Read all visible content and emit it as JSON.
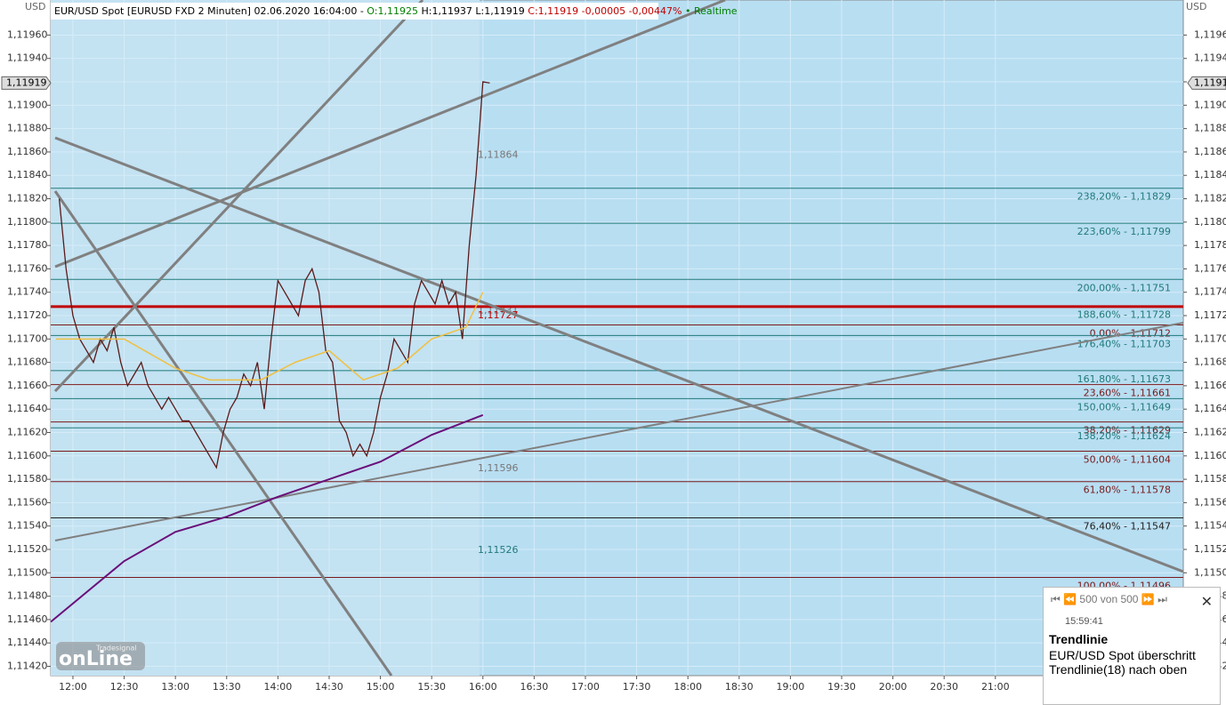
{
  "header": {
    "parts": [
      {
        "text": "EUR/USD Spot [EURUSD FXD 2 Minuten] 02.06.2020 16:04:00 -",
        "color": "#000000"
      },
      {
        "text": "O:1,11925",
        "color": "#008000"
      },
      {
        "text": "H:1,11937 L:1,11919",
        "color": "#000000"
      },
      {
        "text": "C:1,11919 -0,00005 -0,00447%",
        "color": "#c00000"
      },
      {
        "text": "• Realtime",
        "color": "#008000"
      }
    ],
    "currency_left": "USD",
    "currency_right": "USD"
  },
  "price_marker": {
    "label": "1,11919",
    "value": 1.11919
  },
  "logo": {
    "brand": "Tradesignal",
    "text": "onLine"
  },
  "popup": {
    "counter": "500 von 500",
    "time": "15:59:41",
    "title": "Trendlinie",
    "message": "EUR/USD Spot überschritt Trendlinie(18) nach oben"
  },
  "chart_data": {
    "type": "line",
    "xlim": [
      "11:47",
      "22:50"
    ],
    "ylim": [
      1.11412,
      1.1199
    ],
    "xticks": [
      "12:00",
      "12:30",
      "13:00",
      "13:30",
      "14:00",
      "14:30",
      "15:00",
      "15:30",
      "16:00",
      "16:30",
      "17:00",
      "17:30",
      "18:00",
      "18:30",
      "19:00",
      "19:30",
      "20:00",
      "20:30",
      "21:00"
    ],
    "yticks": [
      {
        "value": 1.1142,
        "label": "1,11420"
      },
      {
        "value": 1.1144,
        "label": "1,11440"
      },
      {
        "value": 1.1146,
        "label": "1,11460"
      },
      {
        "value": 1.1148,
        "label": "1,11480"
      },
      {
        "value": 1.115,
        "label": "1,11500"
      },
      {
        "value": 1.1152,
        "label": "1,11520"
      },
      {
        "value": 1.1154,
        "label": "1,11540"
      },
      {
        "value": 1.1156,
        "label": "1,11560"
      },
      {
        "value": 1.1158,
        "label": "1,11580"
      },
      {
        "value": 1.116,
        "label": "1,11600"
      },
      {
        "value": 1.1162,
        "label": "1,11620"
      },
      {
        "value": 1.1164,
        "label": "1,11640"
      },
      {
        "value": 1.1166,
        "label": "1,11660"
      },
      {
        "value": 1.1168,
        "label": "1,11680"
      },
      {
        "value": 1.117,
        "label": "1,11700"
      },
      {
        "value": 1.1172,
        "label": "1,11720"
      },
      {
        "value": 1.1174,
        "label": "1,11740"
      },
      {
        "value": 1.1176,
        "label": "1,11760"
      },
      {
        "value": 1.1178,
        "label": "1,11780"
      },
      {
        "value": 1.118,
        "label": "1,11800"
      },
      {
        "value": 1.1182,
        "label": "1,11820"
      },
      {
        "value": 1.1184,
        "label": "1,11840"
      },
      {
        "value": 1.1186,
        "label": "1,11860"
      },
      {
        "value": 1.1188,
        "label": "1,11880"
      },
      {
        "value": 1.119,
        "label": "1,11900"
      },
      {
        "value": 1.1192,
        "label": "1,11920"
      },
      {
        "value": 1.1194,
        "label": "1,11940"
      },
      {
        "value": 1.1196,
        "label": "1,11960"
      }
    ],
    "grid": true,
    "series": [
      {
        "color": "#5a1a1a",
        "width": 1.3,
        "x": [
          "11:52",
          "11:56",
          "12:00",
          "12:04",
          "12:08",
          "12:12",
          "12:16",
          "12:20",
          "12:24",
          "12:28",
          "12:32",
          "12:36",
          "12:40",
          "12:44",
          "12:48",
          "12:52",
          "12:56",
          "13:00",
          "13:04",
          "13:08",
          "13:12",
          "13:16",
          "13:20",
          "13:24",
          "13:28",
          "13:32",
          "13:36",
          "13:40",
          "13:44",
          "13:48",
          "13:52",
          "13:56",
          "14:00",
          "14:04",
          "14:08",
          "14:12",
          "14:16",
          "14:20",
          "14:24",
          "14:28",
          "14:32",
          "14:36",
          "14:40",
          "14:44",
          "14:48",
          "14:52",
          "14:56",
          "15:00",
          "15:04",
          "15:08",
          "15:12",
          "15:16",
          "15:20",
          "15:24",
          "15:28",
          "15:32",
          "15:36",
          "15:40",
          "15:44",
          "15:48",
          "15:52",
          "15:56",
          "16:00",
          "16:04"
        ],
        "values": [
          1.1182,
          1.1176,
          1.1172,
          1.117,
          1.1169,
          1.1168,
          1.117,
          1.1169,
          1.1171,
          1.1168,
          1.1166,
          1.1167,
          1.1168,
          1.1166,
          1.1165,
          1.1164,
          1.1165,
          1.1164,
          1.1163,
          1.1163,
          1.1162,
          1.1161,
          1.116,
          1.1159,
          1.1162,
          1.1164,
          1.1165,
          1.1167,
          1.1166,
          1.1168,
          1.1164,
          1.117,
          1.1175,
          1.1174,
          1.1173,
          1.1172,
          1.1175,
          1.1176,
          1.1174,
          1.1169,
          1.1168,
          1.1163,
          1.1162,
          1.116,
          1.1161,
          1.116,
          1.1162,
          1.1165,
          1.1167,
          1.117,
          1.1169,
          1.1168,
          1.1173,
          1.1175,
          1.1174,
          1.1173,
          1.1175,
          1.1173,
          1.1174,
          1.117,
          1.1178,
          1.1184,
          1.1192,
          1.11919
        ]
      },
      {
        "color": "#f0c040",
        "width": 1.5,
        "x": [
          "11:50",
          "12:30",
          "13:00",
          "13:20",
          "13:50",
          "14:10",
          "14:30",
          "14:50",
          "15:10",
          "15:30",
          "15:50",
          "16:00"
        ],
        "values": [
          1.117,
          1.117,
          1.11675,
          1.11665,
          1.11665,
          1.1168,
          1.1169,
          1.11665,
          1.11675,
          1.117,
          1.1171,
          1.1174
        ]
      },
      {
        "color": "#6a0f7a",
        "width": 2,
        "x": [
          "11:47",
          "12:30",
          "13:00",
          "13:30",
          "14:00",
          "14:30",
          "15:00",
          "15:30",
          "16:00"
        ],
        "values": [
          1.11458,
          1.1151,
          1.11535,
          1.11548,
          1.11565,
          1.1158,
          1.11595,
          1.11618,
          1.11635
        ]
      }
    ],
    "levels": [
      {
        "label": "238,20% - 1,11829",
        "value": 1.11829,
        "color": "#207a7a"
      },
      {
        "label": "223,60% - 1,11799",
        "value": 1.11799,
        "color": "#207a7a"
      },
      {
        "label": "200,00% - 1,11751",
        "value": 1.11751,
        "color": "#207a7a"
      },
      {
        "label": "188,60% - 1,11728",
        "value": 1.11728,
        "color": "#207a7a"
      },
      {
        "label": "0,00% - 1,11712",
        "value": 1.11712,
        "color": "#7a1a1a"
      },
      {
        "label": "176,40% - 1,11703",
        "value": 1.11703,
        "color": "#207a7a"
      },
      {
        "label": "161,80% - 1,11673",
        "value": 1.11673,
        "color": "#207a7a"
      },
      {
        "label": "23,60% - 1,11661",
        "value": 1.11661,
        "color": "#7a1a1a"
      },
      {
        "label": "150,00% - 1,11649",
        "value": 1.11649,
        "color": "#207a7a"
      },
      {
        "label": "38,20% - 1,11629",
        "value": 1.11629,
        "color": "#7a1a1a"
      },
      {
        "label": "138,20% - 1,11624",
        "value": 1.11624,
        "color": "#207a7a"
      },
      {
        "label": "50,00% - 1,11604",
        "value": 1.11604,
        "color": "#7a1a1a"
      },
      {
        "label": "61,80% - 1,11578",
        "value": 1.11578,
        "color": "#7a1a1a"
      },
      {
        "label": "76,40% - 1,11547",
        "value": 1.11547,
        "color": "#222222"
      },
      {
        "label": "100,00% - 1,11496",
        "value": 1.11496,
        "color": "#7a1a1a"
      }
    ],
    "price_labels": [
      {
        "label": "1,11864",
        "value": 1.11864,
        "color": "#777777"
      },
      {
        "label": "1,11731",
        "value": 1.11731,
        "color": "#777777"
      },
      {
        "label": "1,11727",
        "value": 1.11727,
        "color": "#c00000"
      },
      {
        "label": "1,11596",
        "value": 1.11596,
        "color": "#777777"
      },
      {
        "label": "1,11526",
        "value": 1.11526,
        "color": "#207a7a"
      }
    ]
  }
}
